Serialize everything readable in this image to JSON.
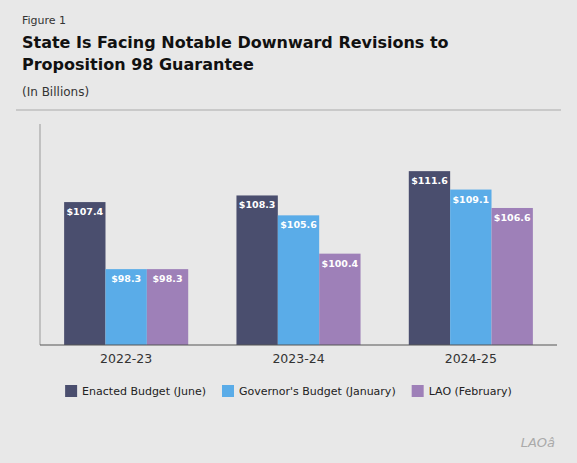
{
  "chart_data": {
    "type": "bar",
    "title": "State Is Facing Notable Downward Revisions to Proposition 98 Guarantee",
    "subtitle": "(In Billions)",
    "annotations": [
      "Figure 1",
      "LAOâ"
    ],
    "categories": [
      "2022-23",
      "2023-24",
      "2024-25"
    ],
    "series": [
      {
        "name": "Enacted Budget (June)",
        "color": "#4a4e6e",
        "values": [
          107.4,
          108.3,
          111.6
        ],
        "value_labels": [
          "$107.4",
          "$108.3",
          "$111.6"
        ]
      },
      {
        "name": "Governor's Budget (January)",
        "color": "#5aace8",
        "values": [
          98.3,
          105.6,
          109.1
        ],
        "value_labels": [
          "$98.3",
          "$105.6",
          "$109.1"
        ]
      },
      {
        "name": "LAO (February)",
        "color": "#9e80b8",
        "values": [
          98.3,
          100.4,
          106.6
        ],
        "value_labels": [
          "$98.3",
          "$100.4",
          "$106.6"
        ]
      }
    ],
    "ylim": [
      88,
      118
    ],
    "data_labels": true,
    "tick_labels": "x",
    "grid": false,
    "legend": "bottom"
  }
}
